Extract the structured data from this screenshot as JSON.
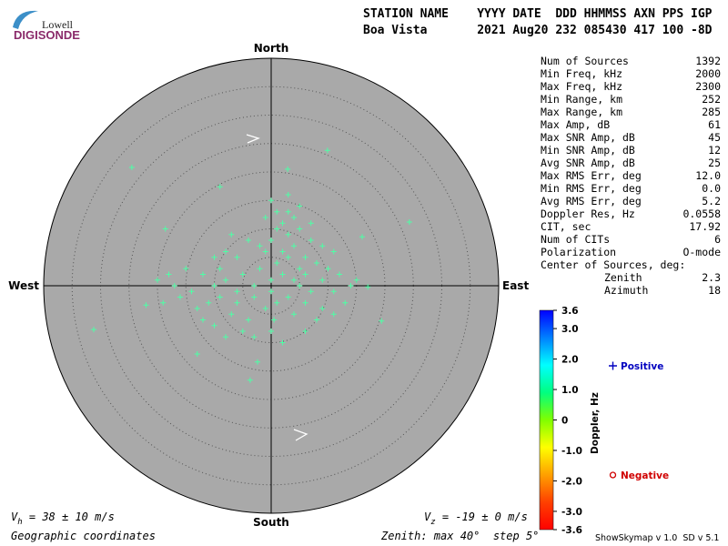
{
  "logo": {
    "brand": "Lowell",
    "product": "DIGISONDE"
  },
  "header": {
    "line1": "STATION NAME    YYYY DATE  DDD HHMMSS AXN PPS IGP",
    "line2": "Boa Vista       2021 Aug20 232 085430 417 100 -8D"
  },
  "stats": [
    {
      "label": "Num of Sources",
      "value": "1392"
    },
    {
      "label": "Min Freq, kHz",
      "value": "2000"
    },
    {
      "label": "Max Freq, kHz",
      "value": "2300"
    },
    {
      "label": "Min Range, km",
      "value": "252"
    },
    {
      "label": "Max Range, km",
      "value": "285"
    },
    {
      "label": "Max Amp, dB",
      "value": "61"
    },
    {
      "label": "Max SNR Amp, dB",
      "value": "45"
    },
    {
      "label": "Min SNR Amp, dB",
      "value": "12"
    },
    {
      "label": "Avg SNR Amp, dB",
      "value": "25"
    },
    {
      "label": "Max RMS Err, deg",
      "value": "12.0"
    },
    {
      "label": "Min RMS Err, deg",
      "value": "0.0"
    },
    {
      "label": "Avg RMS Err, deg",
      "value": "5.2"
    },
    {
      "label": "Doppler Res, Hz",
      "value": "0.0558"
    },
    {
      "label": "CIT, sec",
      "value": "17.92"
    },
    {
      "label": "Num of CITs",
      "value": "6"
    },
    {
      "label": "Polarization",
      "value": "O-mode"
    }
  ],
  "center": {
    "title": "Center of Sources, deg:",
    "rows": [
      {
        "label": "Zenith",
        "value": "2.3"
      },
      {
        "label": "Azimuth",
        "value": "18"
      }
    ]
  },
  "footer": {
    "vh": {
      "symbol": "V",
      "sub": "h",
      "text": " = 38 ± 10 m/s"
    },
    "vz": {
      "symbol": "V",
      "sub": "z",
      "text": " = -19 ± 0 m/s"
    },
    "coords": "Geographic coordinates",
    "zenith": "Zenith: max 40°  step 5°",
    "version": "ShowSkymap v 1.0  SD v 5.1"
  },
  "legend": [
    {
      "name": "Positive",
      "color": "#0000c0"
    },
    {
      "name": "Negative",
      "color": "#d00000"
    }
  ],
  "colorbar": {
    "label": "Doppler, Hz",
    "zlim": [
      -3.6,
      3.6
    ],
    "ticks": [
      3.6,
      {
        "value": 3,
        "label": "3.0"
      },
      {
        "value": 2,
        "label": "2.0"
      },
      {
        "value": 1,
        "label": "1.0"
      },
      0,
      {
        "value": -1,
        "label": "-1.0"
      },
      {
        "value": -2,
        "label": "-2.0"
      },
      {
        "value": -3,
        "label": "-3.0"
      },
      -3.6
    ],
    "colors": [
      "#0000ff",
      "#0080ff",
      "#00ffff",
      "#00ff80",
      "#80ff00",
      "#ffff00",
      "#ffa000",
      "#ff4000",
      "#ff0000"
    ]
  },
  "chart_data": {
    "type": "scatter",
    "directions": {
      "north": "North",
      "south": "South",
      "east": "East",
      "west": "West"
    },
    "xlim": [
      -40,
      40
    ],
    "ylim": [
      -40,
      40
    ],
    "rlim": [
      0,
      40
    ],
    "rticks": [
      5,
      10,
      15,
      20,
      25,
      30,
      35
    ],
    "color": "#4dffa6",
    "disk_color": "#a9a9a9",
    "x": [
      -12,
      -10,
      -8,
      -6,
      -5,
      -3,
      -2,
      0,
      1,
      2,
      3,
      4,
      5,
      6,
      7,
      3,
      2,
      4,
      5,
      6,
      8,
      9,
      10,
      11,
      12,
      14,
      -14,
      -15,
      -16,
      -13,
      -11,
      -9,
      -7,
      -6,
      -4,
      -3,
      -1,
      0,
      1,
      3,
      4,
      6,
      7,
      8,
      -17,
      -18,
      -10,
      -8,
      -6,
      -4,
      -2,
      0,
      1,
      3,
      5,
      1,
      -1,
      2,
      4,
      5,
      -5,
      -8,
      -10,
      -12,
      -3,
      0,
      2,
      6,
      9,
      11,
      13,
      15,
      -20,
      -19,
      -7,
      -9,
      -1,
      0,
      3,
      7,
      9,
      11,
      -24.5,
      9.9,
      -31.2,
      -3.7,
      24.3,
      17,
      2.9,
      -9,
      -18.6,
      -13,
      -2.4,
      16,
      -22,
      19.4,
      0.5
    ],
    "y": [
      2,
      0,
      1,
      -1,
      2,
      0,
      3,
      1,
      4,
      6,
      5,
      7,
      3,
      5,
      8,
      9,
      11,
      12,
      10,
      2,
      4,
      1,
      3,
      -1,
      2,
      0,
      -1,
      3,
      -2,
      -4,
      -3,
      -2,
      -5,
      -3,
      -6,
      -2,
      -4,
      -1,
      -3,
      -2,
      -5,
      -3,
      -1,
      -6,
      0,
      2,
      5,
      6,
      5,
      8,
      7,
      8,
      10,
      13,
      14,
      13,
      6,
      2,
      1,
      0,
      -8,
      -9,
      -7,
      -6,
      -9,
      -8,
      -10,
      -8,
      -4,
      -5,
      -3,
      1,
      1,
      -3,
      9,
      3,
      12,
      15,
      16,
      11,
      7,
      6,
      20.8,
      23.8,
      -7.7,
      -16.6,
      11.2,
      -0.2,
      20.5,
      17.4,
      10,
      -12,
      -13.4,
      8.6,
      -3.4,
      -6.2,
      -6
    ]
  }
}
